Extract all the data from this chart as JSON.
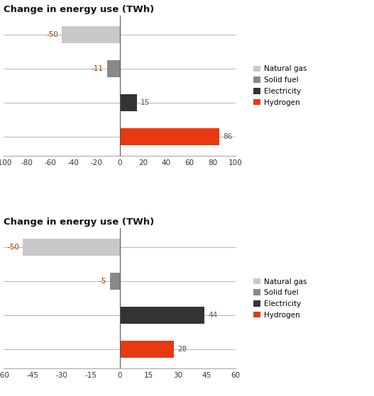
{
  "chart1": {
    "title": "Change in energy use (TWh)",
    "categories": [
      "Natural gas",
      "Solid fuel",
      "Electricity",
      "Hydrogen"
    ],
    "values": [
      -50,
      -11,
      15,
      86
    ],
    "colors": [
      "#c8c8c8",
      "#888888",
      "#333333",
      "#e83a10"
    ],
    "xlim": [
      -100,
      100
    ],
    "xticks": [
      -100,
      -80,
      -60,
      -40,
      -20,
      0,
      20,
      40,
      60,
      80,
      100
    ]
  },
  "chart2": {
    "title": "Change in energy use (TWh)",
    "categories": [
      "Natural gas",
      "Solid fuel",
      "Electricity",
      "Hydrogen"
    ],
    "values": [
      -50,
      -5,
      44,
      28
    ],
    "colors": [
      "#c8c8c8",
      "#888888",
      "#333333",
      "#e83a10"
    ],
    "xlim": [
      -60,
      60
    ],
    "xticks": [
      -60,
      -45,
      -30,
      -15,
      0,
      15,
      30,
      45,
      60
    ]
  },
  "legend_labels": [
    "Natural gas",
    "Solid fuel",
    "Electricity",
    "Hydrogen"
  ],
  "legend_colors": [
    "#c8c8c8",
    "#888888",
    "#333333",
    "#e83a10"
  ],
  "bar_height": 0.5,
  "title_fontsize": 9.5,
  "tick_fontsize": 7.5,
  "label_fontsize": 7.5,
  "value_color": "#555555",
  "neg_value_color": "#b03000",
  "line_color": "#aaaaaa",
  "background_color": "#ffffff"
}
